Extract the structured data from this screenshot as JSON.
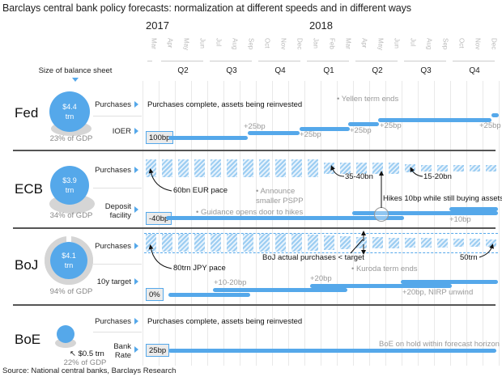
{
  "title": "Barclays central bank policy forecasts: normalization at different speeds and in different ways",
  "timeline": {
    "years": [
      "2017",
      "2018"
    ],
    "months": [
      "Mar",
      "Apr",
      "May",
      "Jun",
      "Jul",
      "Aug",
      "Sep",
      "Oct",
      "Nov",
      "Dec",
      "Jan",
      "Feb",
      "Mar",
      "Apr",
      "May",
      "Jun",
      "Jul",
      "Aug",
      "Sep",
      "Oct",
      "Nov",
      "Dec"
    ],
    "quarters": [
      "Q2",
      "Q3",
      "Q4",
      "Q1",
      "Q2",
      "Q3",
      "Q4"
    ]
  },
  "balance_sheet_label": "Size of balance sheet",
  "banks": [
    {
      "name": "Fed",
      "balance_sheet": "$4.4",
      "unit": "trn",
      "gdp_share": "23% of GDP",
      "gdp_pct": 23,
      "rows": [
        {
          "label": "Purchases",
          "text": "Purchases complete, assets being reinvested"
        },
        {
          "label": "IOER",
          "start_value": "100bp"
        }
      ],
      "annotations": [
        "Yellen term ends",
        "+25bp",
        "+25bp",
        "+25bp",
        "+25bp",
        "+25bp"
      ]
    },
    {
      "name": "ECB",
      "balance_sheet": "$3.9",
      "unit": "trn",
      "gdp_share": "34% of GDP",
      "gdp_pct": 34,
      "rows": [
        {
          "label": "Purchases"
        },
        {
          "label": "Deposit facility",
          "label_line1": "Deposit",
          "label_line2": "facility",
          "start_value": "-40bp"
        }
      ],
      "annotations": {
        "pace": "60bn EUR pace",
        "pspp_1": "Announce",
        "pspp_2": "smaller PSPP",
        "taper1": "35-40bn",
        "taper2": "15-20bn",
        "guidance": "Guidance opens door to  hikes",
        "hikes_note": "Hikes 10bp while still buying assets",
        "hike": "+10bp"
      }
    },
    {
      "name": "BoJ",
      "balance_sheet": "$4.1",
      "unit": "trn",
      "gdp_share": "94% of GDP",
      "gdp_pct": 94,
      "rows": [
        {
          "label": "Purchases"
        },
        {
          "label": "10y target",
          "start_value": "0%"
        }
      ],
      "annotations": {
        "pace": "80trn JPY pace",
        "actual": "BoJ actual purchases < target",
        "end_pace": "50trn",
        "kuroda": "Kuroda term ends",
        "hike1": "+10-20bp",
        "hike2": "+20bp",
        "hike3": "+20bp, NIRP unwind"
      }
    },
    {
      "name": "BoE",
      "balance_sheet": "$0.5 trn",
      "gdp_share": "22% of GDP",
      "gdp_pct": 22,
      "rows": [
        {
          "label": "Purchases",
          "text": "Purchases complete, assets being reinvested"
        },
        {
          "label": "Bank Rate",
          "label_line1": "Bank",
          "label_line2": "Rate",
          "start_value": "25bp"
        }
      ],
      "annotations": {
        "hold": "BoE on hold within forecast horizon"
      }
    }
  ],
  "source": "Source: National central banks, Barclays Research",
  "colors": {
    "accent": "#55a8ea",
    "grey": "#d5d5d5",
    "text_muted": "#999999"
  }
}
